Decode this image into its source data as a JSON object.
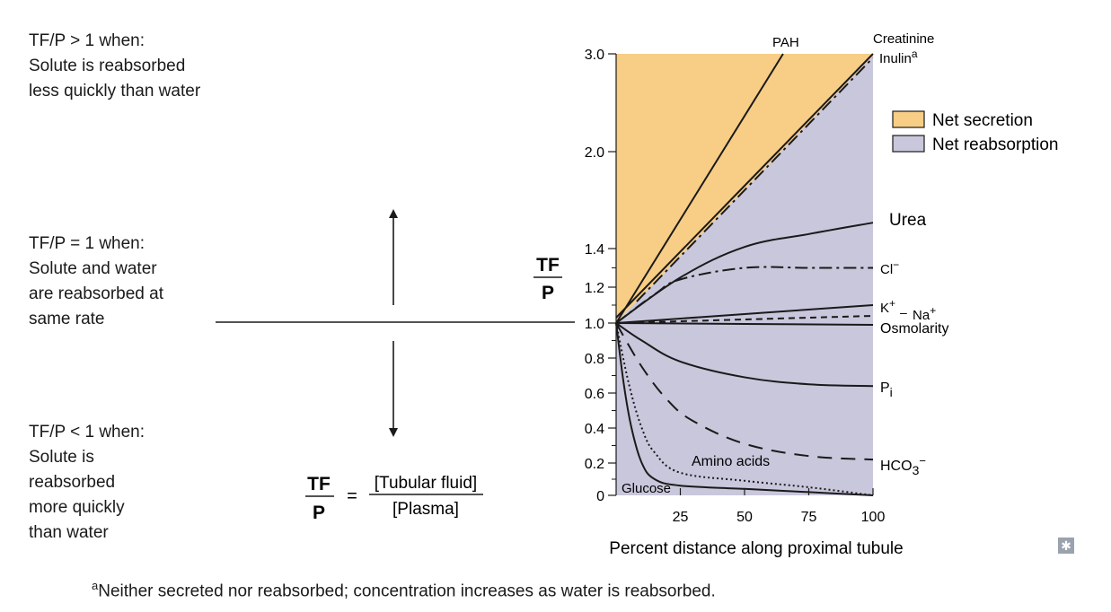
{
  "left_notes": {
    "gt": "TF/P > 1 when:\nSolute is reabsorbed\nless quickly than water",
    "eq": "TF/P = 1 when:\nSolute and water\nare reabsorbed at\nsame rate",
    "lt": "TF/P < 1 when:\nSolute is\nreabsorbed\nmore quickly\nthan water"
  },
  "formula": {
    "lhs_num": "TF",
    "lhs_den": "P",
    "equals": "=",
    "rhs_num": "[Tubular fluid]",
    "rhs_den": "[Plasma]"
  },
  "footnote": {
    "marker": "a",
    "text": "Neither secreted nor reabsorbed; concentration increases as water is reabsorbed."
  },
  "expand_icon": "expand-icon",
  "colors": {
    "secretion": "#f8cd85",
    "reabsorption": "#c9c7dc",
    "line": "#1a1a1a"
  },
  "chart_data": {
    "type": "line",
    "ylabel_num": "TF",
    "ylabel_den": "P",
    "xlabel": "Percent distance along proximal tubule",
    "xlim": [
      0,
      100
    ],
    "x_ticks": [
      "25",
      "50",
      "75",
      "100"
    ],
    "y_ticks": [
      "0",
      "0.2",
      "0.4",
      "0.6",
      "0.8",
      "1.0",
      "1.2",
      "1.4",
      "2.0",
      "3.0"
    ],
    "y_scale": "piecewise (expanded below 1.4)",
    "legend": [
      {
        "label": "Net secretion",
        "color": "#f8cd85"
      },
      {
        "label": "Net reabsorption",
        "color": "#c9c7dc"
      }
    ],
    "legend_position": "right",
    "series": [
      {
        "name": "PAH",
        "style": "solid",
        "x": [
          0,
          65
        ],
        "y": [
          1.0,
          3.0
        ]
      },
      {
        "name": "Creatinine",
        "style": "solid",
        "x": [
          0,
          100
        ],
        "y": [
          1.03,
          3.0
        ]
      },
      {
        "name": "Inulin",
        "name_sup": "a",
        "style": "dashdot",
        "x": [
          8,
          100
        ],
        "y": [
          1.12,
          2.96
        ]
      },
      {
        "name": "Urea",
        "style": "solid",
        "x": [
          0,
          25,
          50,
          75,
          100
        ],
        "y": [
          1.0,
          1.25,
          1.41,
          1.49,
          1.56
        ]
      },
      {
        "name": "Cl",
        "name_sup": "−",
        "style": "dashdot",
        "x": [
          0,
          15,
          25,
          50,
          75,
          100
        ],
        "y": [
          1.0,
          1.16,
          1.24,
          1.3,
          1.3,
          1.3
        ]
      },
      {
        "name": "K",
        "name_sup": "+",
        "style": "solid",
        "x": [
          0,
          50,
          100
        ],
        "y": [
          1.0,
          1.05,
          1.1
        ]
      },
      {
        "name": "Na",
        "name_sup": "+",
        "style": "dashed",
        "x": [
          0,
          50,
          100
        ],
        "y": [
          1.0,
          1.02,
          1.04
        ]
      },
      {
        "name": "Osmolarity",
        "style": "solid",
        "x": [
          0,
          100
        ],
        "y": [
          1.0,
          0.99
        ]
      },
      {
        "name": "P",
        "name_sub": "i",
        "style": "solid",
        "x": [
          0,
          10,
          25,
          50,
          75,
          100
        ],
        "y": [
          1.0,
          0.9,
          0.78,
          0.69,
          0.65,
          0.64
        ]
      },
      {
        "name": "HCO",
        "name_sub": "3",
        "name_sup": "−",
        "style": "longdash",
        "x": [
          0,
          10,
          20,
          30,
          50,
          75,
          100
        ],
        "y": [
          1.0,
          0.75,
          0.56,
          0.44,
          0.31,
          0.24,
          0.22
        ]
      },
      {
        "name": "Amino acids",
        "style": "dotted",
        "x": [
          0,
          5,
          10,
          15,
          25,
          50,
          75,
          100
        ],
        "y": [
          1.0,
          0.65,
          0.4,
          0.26,
          0.14,
          0.09,
          0.05,
          0.0
        ]
      },
      {
        "name": "Glucose",
        "style": "solid",
        "x": [
          0,
          3,
          6,
          10,
          15,
          25,
          50,
          75,
          100
        ],
        "y": [
          1.0,
          0.65,
          0.4,
          0.2,
          0.1,
          0.06,
          0.04,
          0.02,
          0.0
        ]
      }
    ]
  }
}
